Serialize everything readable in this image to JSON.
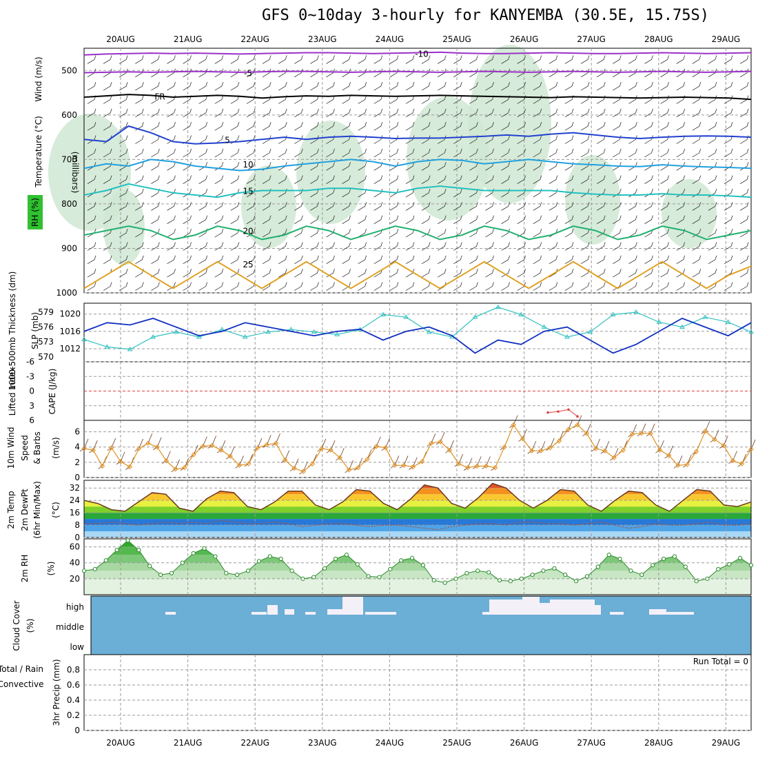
{
  "title": "GFS 0~10day 3-hourly for KANYEMBA (30.5E, 15.75S)",
  "colors": {
    "frame": "#000000",
    "grid": "#9a9a9a",
    "rh_fill": "#cfe8d2",
    "temp_neg10": "#9b30c8",
    "temp_fr": "#000000",
    "temp_5": "#2040d0",
    "temp_10": "#20a0e0",
    "temp_15": "#20c0c0",
    "temp_20": "#20b070",
    "temp_25": "#e0a020",
    "temp_30": "#e06010",
    "slp": "#1030c0",
    "thickness": "#30c0c0",
    "lifted_index": "#e04040",
    "wind_speed": "#e09020",
    "rh2m": "#30b030",
    "cloud": "#6baed6",
    "precip_grid": "#bbbbbb"
  },
  "chart_data": [
    {
      "type": "area",
      "panel": "profile",
      "ylabel_rh": "RH (%)",
      "ylabel_temp": "Temperature (°C)",
      "ylabel_wind": "Wind (m/s)",
      "ylabel_pressure": "(millibars)",
      "dates": [
        "20AUG",
        "21AUG",
        "22AUG",
        "23AUG",
        "24AUG",
        "25AUG",
        "26AUG",
        "27AUG",
        "28AUG",
        "29AUG"
      ],
      "pressure_ticks": [
        500,
        600,
        700,
        800,
        900,
        1000
      ],
      "ylim": [
        450,
        1000
      ],
      "isotherms": [
        {
          "label": "-10",
          "level_mb": 462,
          "values": [
            465,
            463,
            462,
            461,
            462,
            461,
            462,
            463,
            462,
            461,
            460,
            460,
            461,
            462,
            461,
            460,
            459,
            461,
            462,
            462,
            461,
            460,
            461,
            462,
            462,
            461,
            460,
            461,
            462,
            461,
            460
          ]
        },
        {
          "label": "-5",
          "level_mb": 505,
          "values": [
            505,
            504,
            503,
            504,
            503,
            502,
            503,
            504,
            503,
            502,
            502,
            503,
            504,
            503,
            502,
            503,
            504,
            503,
            502,
            503,
            504,
            503,
            502,
            503,
            504,
            503,
            502,
            503,
            504,
            503,
            502
          ]
        },
        {
          "label": "FR",
          "level_mb": 558,
          "values": [
            560,
            557,
            554,
            556,
            560,
            558,
            556,
            558,
            562,
            559,
            557,
            558,
            556,
            557,
            558,
            557,
            556,
            557,
            558,
            559,
            560,
            561,
            559,
            560,
            561,
            562,
            561,
            560,
            561,
            562,
            565
          ]
        },
        {
          "label": "5",
          "level_mb": 655,
          "values": [
            655,
            660,
            625,
            640,
            660,
            665,
            663,
            660,
            655,
            650,
            655,
            650,
            648,
            650,
            653,
            652,
            652,
            650,
            648,
            645,
            648,
            643,
            640,
            645,
            650,
            653,
            650,
            648,
            647,
            648,
            650
          ]
        },
        {
          "label": "10",
          "level_mb": 710,
          "values": [
            720,
            710,
            715,
            700,
            705,
            715,
            720,
            725,
            722,
            715,
            710,
            705,
            700,
            705,
            715,
            705,
            700,
            702,
            710,
            705,
            700,
            705,
            710,
            712,
            715,
            716,
            712,
            715,
            717,
            718,
            720
          ]
        },
        {
          "label": "15",
          "level_mb": 770,
          "values": [
            780,
            770,
            755,
            765,
            775,
            780,
            785,
            775,
            770,
            770,
            770,
            765,
            765,
            770,
            775,
            765,
            760,
            765,
            770,
            770,
            770,
            770,
            775,
            778,
            780,
            780,
            777,
            780,
            780,
            782,
            785
          ]
        },
        {
          "label": "20",
          "level_mb": 860,
          "values": [
            870,
            860,
            850,
            860,
            880,
            870,
            850,
            860,
            880,
            870,
            850,
            860,
            880,
            865,
            850,
            860,
            880,
            870,
            850,
            860,
            880,
            870,
            850,
            860,
            880,
            870,
            850,
            860,
            880,
            870,
            860
          ]
        },
        {
          "label": "25",
          "level_mb": 935,
          "values": [
            990,
            960,
            930,
            960,
            990,
            960,
            930,
            960,
            990,
            960,
            930,
            960,
            990,
            960,
            930,
            960,
            990,
            960,
            930,
            960,
            990,
            960,
            930,
            960,
            990,
            960,
            930,
            960,
            990,
            960,
            940
          ]
        }
      ]
    },
    {
      "type": "line",
      "panel": "slp_thickness",
      "ylabel_left": "1000-500mb Thickness (dm)",
      "ylabel_right": "SLP (mb)",
      "thickness_ticks": [
        570,
        573,
        576,
        579
      ],
      "slp_ticks": [
        1012,
        1016,
        1020
      ],
      "slp_ylim": [
        1009,
        1022.5
      ],
      "thickness_ylim": [
        569,
        580.8
      ],
      "series": [
        {
          "name": "SLP",
          "values": [
            1016,
            1018,
            1017.5,
            1019,
            1017,
            1015,
            1016,
            1018,
            1017,
            1016,
            1015,
            1016,
            1016.5,
            1014,
            1016,
            1017,
            1015,
            1011,
            1014,
            1013,
            1016,
            1017,
            1014,
            1011,
            1013,
            1016,
            1019,
            1017,
            1015,
            1018
          ]
        },
        {
          "name": "Thickness",
          "values": [
            573.5,
            572,
            571.5,
            574,
            575,
            574,
            575.5,
            574,
            575,
            575.5,
            575,
            574.5,
            575.5,
            578.5,
            578,
            575,
            574,
            578,
            580,
            578.5,
            576,
            574,
            575,
            578.5,
            579,
            577,
            576,
            578,
            577,
            575
          ]
        }
      ]
    },
    {
      "type": "line",
      "panel": "cape_li",
      "ylabel_left": "Lifted Index",
      "ylabel_right": "CAPE (J/kg)",
      "ticks": [
        "-6",
        "-3",
        "0",
        "3",
        "6"
      ],
      "ylim": [
        -6,
        6
      ],
      "series": [
        {
          "name": "Lifted Index",
          "values": [
            4.4,
            4.2,
            3.8,
            5.2
          ]
        }
      ]
    },
    {
      "type": "line",
      "panel": "wind10m",
      "ylabel_a": "10m Wind",
      "ylabel_b": "Speed",
      "ylabel_c": "& Barbs",
      "unit": "(m/s)",
      "ticks": [
        0,
        2,
        4,
        6
      ],
      "ylim": [
        0,
        7.5
      ],
      "series": [
        {
          "name": "Wind Speed",
          "values": [
            3.8,
            3.6,
            1.5,
            3.9,
            2.1,
            1.4,
            3.8,
            4.5,
            4.0,
            2.2,
            1.1,
            1.3,
            3.0,
            4.1,
            4.2,
            3.6,
            2.8,
            1.6,
            1.8,
            3.9,
            4.3,
            4.5,
            2.3,
            1.2,
            0.8,
            1.8,
            3.8,
            3.6,
            2.6,
            1.0,
            1.3,
            2.4,
            4.1,
            3.9,
            1.6,
            1.6,
            1.4,
            2.1,
            4.5,
            4.7,
            3.6,
            1.8,
            1.3,
            1.5,
            1.5,
            1.3,
            4.0,
            6.9,
            5.1,
            3.5,
            3.5,
            3.9,
            4.8,
            6.3,
            6.9,
            5.8,
            3.8,
            3.5,
            2.6,
            3.6,
            5.7,
            5.8,
            5.8,
            3.6,
            2.9,
            1.6,
            1.7,
            3.4,
            6.1,
            5.0,
            4.2,
            2.2,
            1.8,
            3.7
          ]
        }
      ]
    },
    {
      "type": "area",
      "panel": "temp2m",
      "ylabel_a": "2m Temp",
      "ylabel_b": "2m DewPt",
      "ylabel_c": "(6hr Min/Max)",
      "unit": "(°C)",
      "ticks": [
        0,
        8,
        16,
        24,
        32
      ],
      "ylim": [
        0,
        37
      ],
      "series": [
        {
          "name": "Temperature",
          "values": [
            24,
            22,
            18,
            17,
            23,
            29,
            28,
            19,
            17,
            25,
            30,
            29,
            20,
            18,
            23,
            30,
            30,
            21,
            18,
            23,
            31,
            30,
            22,
            18,
            25,
            34,
            32,
            22,
            19,
            26,
            35,
            32,
            24,
            19,
            24,
            31,
            30,
            21,
            17,
            24,
            30,
            29,
            21,
            17,
            24,
            31,
            30,
            21,
            20,
            23
          ]
        },
        {
          "name": "DewPoint",
          "values": [
            9,
            9,
            10,
            9,
            8,
            9,
            10,
            9,
            10,
            9,
            11,
            10,
            9,
            9,
            10,
            9,
            7,
            8,
            9,
            9,
            8,
            7,
            8,
            8,
            7,
            6,
            5,
            7,
            8,
            9,
            9,
            8,
            10,
            10,
            9,
            9,
            8,
            9,
            10,
            8,
            6,
            7,
            9,
            8,
            8,
            9,
            10,
            8,
            8,
            9
          ]
        }
      ]
    },
    {
      "type": "area",
      "panel": "rh2m",
      "ylabel": "2m RH",
      "unit": "(%)",
      "ticks": [
        20,
        40,
        60
      ],
      "ylim": [
        0,
        70
      ],
      "series": [
        {
          "name": "RH",
          "values": [
            30,
            32,
            43,
            56,
            68,
            56,
            36,
            25,
            27,
            40,
            52,
            58,
            48,
            27,
            25,
            30,
            42,
            48,
            45,
            30,
            20,
            22,
            33,
            45,
            50,
            38,
            23,
            22,
            32,
            43,
            46,
            37,
            18,
            15,
            20,
            27,
            30,
            28,
            18,
            17,
            20,
            25,
            30,
            33,
            25,
            17,
            23,
            35,
            50,
            45,
            30,
            25,
            37,
            45,
            48,
            35,
            17,
            20,
            32,
            38,
            46,
            37
          ]
        }
      ]
    },
    {
      "type": "bar",
      "panel": "cloud",
      "ylabel": "Cloud Cover",
      "unit": "(%)",
      "levels": [
        "high",
        "middle",
        "low"
      ]
    },
    {
      "type": "bar",
      "panel": "precip",
      "ylabel_a": "Total / Rain",
      "ylabel_b": "Convective",
      "ylabel_c": "3hr Precip (mm)",
      "ticks": [
        "0",
        "0.2",
        "0.4",
        "0.6",
        "0.8"
      ],
      "ylim": [
        0,
        1.0
      ],
      "run_total": "Run Total = 0"
    }
  ]
}
